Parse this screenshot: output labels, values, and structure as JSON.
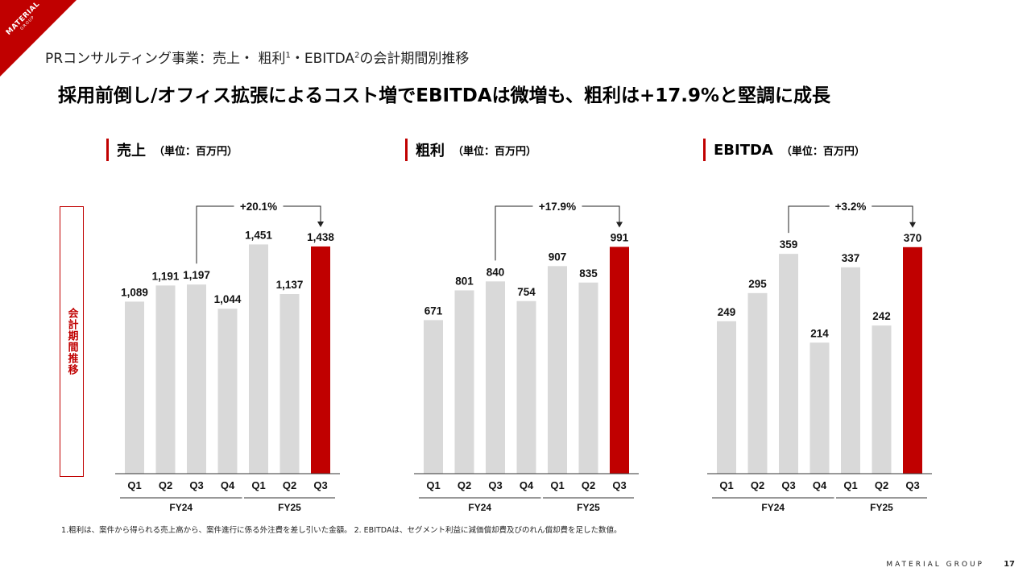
{
  "brand": {
    "logo_text": "MATERIAL",
    "logo_sub": "GROUP",
    "accent": "#c00000",
    "bar_gray": "#d9d9d9"
  },
  "subtitle": {
    "text_a": "PRコンサルティング事業：売上・ 粗利",
    "sup_a": "1",
    "text_b": "・EBITDA",
    "sup_b": "2",
    "text_c": "の会計期間別推移"
  },
  "headline": "採用前倒し/オフィス拡張によるコスト増でEBITDAは微増も、粗利は+17.9%と堅調に成長",
  "side_label": "会計期間推移",
  "sections": [
    {
      "title": "売上",
      "unit": "（単位：百万円）"
    },
    {
      "title": "粗利",
      "unit": "（単位：百万円）"
    },
    {
      "title": "EBITDA",
      "unit": "（単位：百万円）"
    }
  ],
  "chart_data": [
    {
      "type": "bar",
      "title": "売上",
      "categories": [
        "Q1",
        "Q2",
        "Q3",
        "Q4",
        "Q1",
        "Q2",
        "Q3"
      ],
      "values": [
        1089,
        1191,
        1197,
        1044,
        1451,
        1137,
        1438
      ],
      "labels": [
        "1,089",
        "1,191",
        "1,197",
        "1,044",
        "1,451",
        "1,137",
        "1,438"
      ],
      "groups": [
        {
          "name": "FY24",
          "from": 0,
          "to": 3
        },
        {
          "name": "FY25",
          "from": 4,
          "to": 6
        }
      ],
      "highlight_index": 6,
      "growth": {
        "label": "+20.1%",
        "from": 2,
        "to": 6
      },
      "ylim": [
        0,
        1550
      ]
    },
    {
      "type": "bar",
      "title": "粗利",
      "categories": [
        "Q1",
        "Q2",
        "Q3",
        "Q4",
        "Q1",
        "Q2",
        "Q3"
      ],
      "values": [
        671,
        801,
        840,
        754,
        907,
        835,
        991
      ],
      "labels": [
        "671",
        "801",
        "840",
        "754",
        "907",
        "835",
        "991"
      ],
      "groups": [
        {
          "name": "FY24",
          "from": 0,
          "to": 3
        },
        {
          "name": "FY25",
          "from": 4,
          "to": 6
        }
      ],
      "highlight_index": 6,
      "growth": {
        "label": "+17.9%",
        "from": 2,
        "to": 6
      },
      "ylim": [
        0,
        1070
      ]
    },
    {
      "type": "bar",
      "title": "EBITDA",
      "categories": [
        "Q1",
        "Q2",
        "Q3",
        "Q4",
        "Q1",
        "Q2",
        "Q3"
      ],
      "values": [
        249,
        295,
        359,
        214,
        337,
        242,
        370
      ],
      "labels": [
        "249",
        "295",
        "359",
        "214",
        "337",
        "242",
        "370"
      ],
      "groups": [
        {
          "name": "FY24",
          "from": 0,
          "to": 3
        },
        {
          "name": "FY25",
          "from": 4,
          "to": 6
        }
      ],
      "highlight_index": 6,
      "growth": {
        "label": "+3.2%",
        "from": 2,
        "to": 6
      },
      "ylim": [
        0,
        400
      ]
    }
  ],
  "footnote": "1.粗利は、案件から得られる売上高から、案件進行に係る外注費を差し引いた金額。 2. EBITDAは、セグメント利益に減価償却費及びのれん償却費を足した数値。",
  "footer": {
    "brand": "MATERIAL GROUP",
    "page": "17"
  }
}
